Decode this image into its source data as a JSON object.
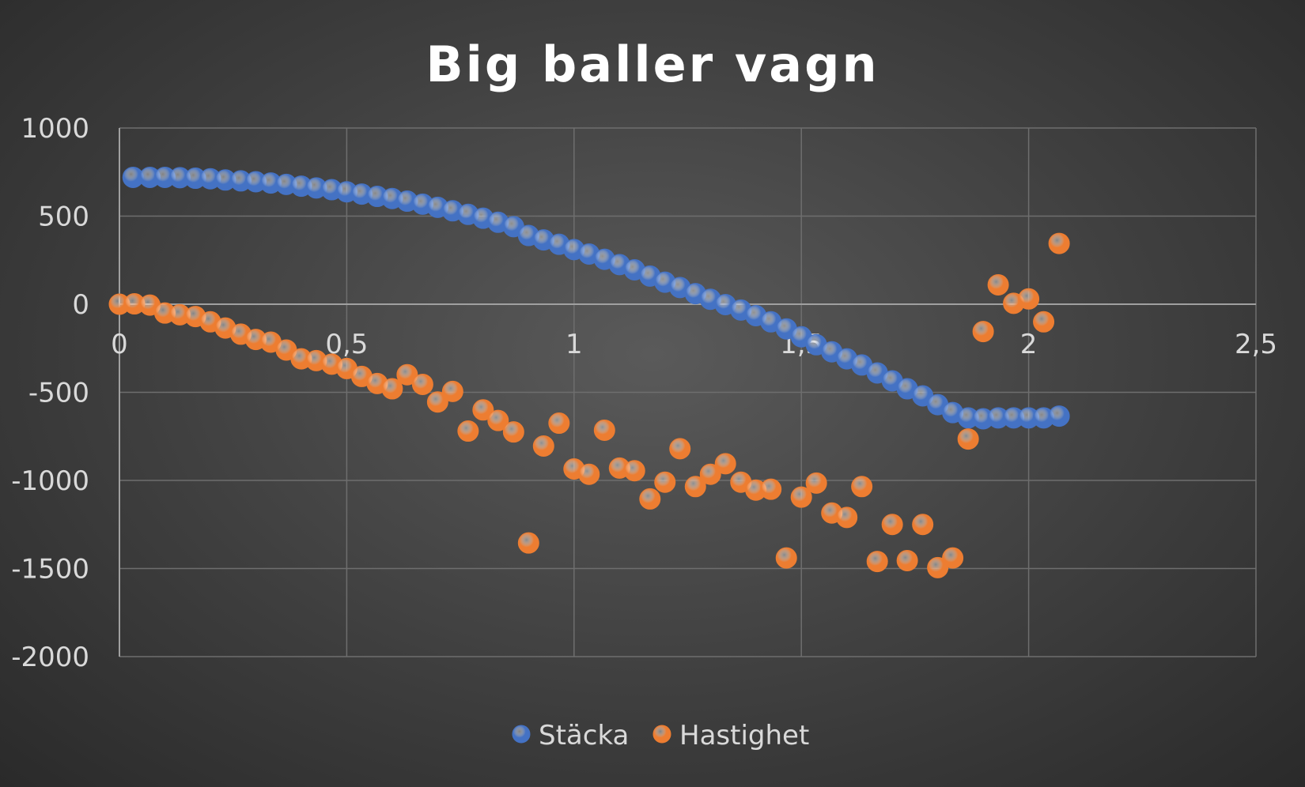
{
  "chart_data": {
    "type": "scatter",
    "title": "Big baller vagn",
    "xlabel": "",
    "ylabel": "",
    "xlim": [
      0,
      2.5
    ],
    "ylim": [
      -2000,
      1000
    ],
    "x_ticks": [
      "0",
      "0,5",
      "1",
      "1,5",
      "2",
      "2,5"
    ],
    "x_tick_values": [
      0,
      0.5,
      1,
      1.5,
      2,
      2.5
    ],
    "y_ticks": [
      "1000",
      "500",
      "0",
      "-500",
      "-1000",
      "-1500",
      "-2000"
    ],
    "y_tick_values": [
      1000,
      500,
      0,
      -500,
      -1000,
      -1500,
      -2000
    ],
    "grid": true,
    "legend_position": "bottom",
    "series": [
      {
        "name": "Stäcka",
        "color": "#4472c4",
        "points": [
          [
            0.03,
            720
          ],
          [
            0.067,
            720
          ],
          [
            0.1,
            720
          ],
          [
            0.133,
            718
          ],
          [
            0.167,
            715
          ],
          [
            0.2,
            712
          ],
          [
            0.233,
            705
          ],
          [
            0.267,
            700
          ],
          [
            0.3,
            695
          ],
          [
            0.333,
            688
          ],
          [
            0.367,
            680
          ],
          [
            0.4,
            670
          ],
          [
            0.433,
            660
          ],
          [
            0.467,
            650
          ],
          [
            0.5,
            638
          ],
          [
            0.533,
            625
          ],
          [
            0.567,
            612
          ],
          [
            0.6,
            600
          ],
          [
            0.633,
            585
          ],
          [
            0.667,
            568
          ],
          [
            0.7,
            550
          ],
          [
            0.733,
            530
          ],
          [
            0.767,
            510
          ],
          [
            0.8,
            488
          ],
          [
            0.833,
            465
          ],
          [
            0.867,
            440
          ],
          [
            0.9,
            390
          ],
          [
            0.933,
            365
          ],
          [
            0.967,
            340
          ],
          [
            1.0,
            310
          ],
          [
            1.033,
            285
          ],
          [
            1.067,
            255
          ],
          [
            1.1,
            225
          ],
          [
            1.133,
            195
          ],
          [
            1.167,
            160
          ],
          [
            1.2,
            125
          ],
          [
            1.233,
            95
          ],
          [
            1.267,
            60
          ],
          [
            1.3,
            28
          ],
          [
            1.333,
            -2
          ],
          [
            1.367,
            -33
          ],
          [
            1.4,
            -65
          ],
          [
            1.433,
            -100
          ],
          [
            1.467,
            -140
          ],
          [
            1.5,
            -185
          ],
          [
            1.533,
            -230
          ],
          [
            1.567,
            -270
          ],
          [
            1.6,
            -310
          ],
          [
            1.633,
            -345
          ],
          [
            1.667,
            -390
          ],
          [
            1.7,
            -435
          ],
          [
            1.733,
            -480
          ],
          [
            1.767,
            -520
          ],
          [
            1.8,
            -570
          ],
          [
            1.833,
            -615
          ],
          [
            1.867,
            -645
          ],
          [
            1.9,
            -650
          ],
          [
            1.933,
            -645
          ],
          [
            1.967,
            -645
          ],
          [
            2.0,
            -645
          ],
          [
            2.033,
            -645
          ],
          [
            2.067,
            -635
          ]
        ]
      },
      {
        "name": "Hastighet",
        "color": "#ed7d31",
        "points": [
          [
            0.0,
            0
          ],
          [
            0.033,
            2
          ],
          [
            0.067,
            -5
          ],
          [
            0.1,
            -50
          ],
          [
            0.133,
            -60
          ],
          [
            0.167,
            -70
          ],
          [
            0.2,
            -100
          ],
          [
            0.233,
            -135
          ],
          [
            0.267,
            -170
          ],
          [
            0.3,
            -200
          ],
          [
            0.333,
            -215
          ],
          [
            0.367,
            -260
          ],
          [
            0.4,
            -310
          ],
          [
            0.433,
            -320
          ],
          [
            0.467,
            -340
          ],
          [
            0.5,
            -365
          ],
          [
            0.533,
            -410
          ],
          [
            0.567,
            -450
          ],
          [
            0.6,
            -480
          ],
          [
            0.633,
            -400
          ],
          [
            0.667,
            -455
          ],
          [
            0.7,
            -555
          ],
          [
            0.733,
            -495
          ],
          [
            0.767,
            -720
          ],
          [
            0.8,
            -600
          ],
          [
            0.833,
            -660
          ],
          [
            0.867,
            -725
          ],
          [
            0.9,
            -1355
          ],
          [
            0.933,
            -805
          ],
          [
            0.967,
            -675
          ],
          [
            1.0,
            -935
          ],
          [
            1.033,
            -965
          ],
          [
            1.067,
            -715
          ],
          [
            1.1,
            -930
          ],
          [
            1.133,
            -945
          ],
          [
            1.167,
            -1105
          ],
          [
            1.2,
            -1010
          ],
          [
            1.233,
            -820
          ],
          [
            1.267,
            -1035
          ],
          [
            1.3,
            -965
          ],
          [
            1.333,
            -905
          ],
          [
            1.367,
            -1010
          ],
          [
            1.4,
            -1055
          ],
          [
            1.433,
            -1050
          ],
          [
            1.467,
            -1440
          ],
          [
            1.5,
            -1095
          ],
          [
            1.533,
            -1015
          ],
          [
            1.567,
            -1185
          ],
          [
            1.6,
            -1210
          ],
          [
            1.633,
            -1035
          ],
          [
            1.667,
            -1460
          ],
          [
            1.7,
            -1250
          ],
          [
            1.733,
            -1455
          ],
          [
            1.767,
            -1250
          ],
          [
            1.8,
            -1495
          ],
          [
            1.833,
            -1440
          ],
          [
            1.867,
            -765
          ],
          [
            1.9,
            -155
          ],
          [
            1.933,
            110
          ],
          [
            1.967,
            5
          ],
          [
            2.0,
            30
          ],
          [
            2.033,
            -100
          ],
          [
            2.067,
            345
          ]
        ]
      }
    ]
  }
}
